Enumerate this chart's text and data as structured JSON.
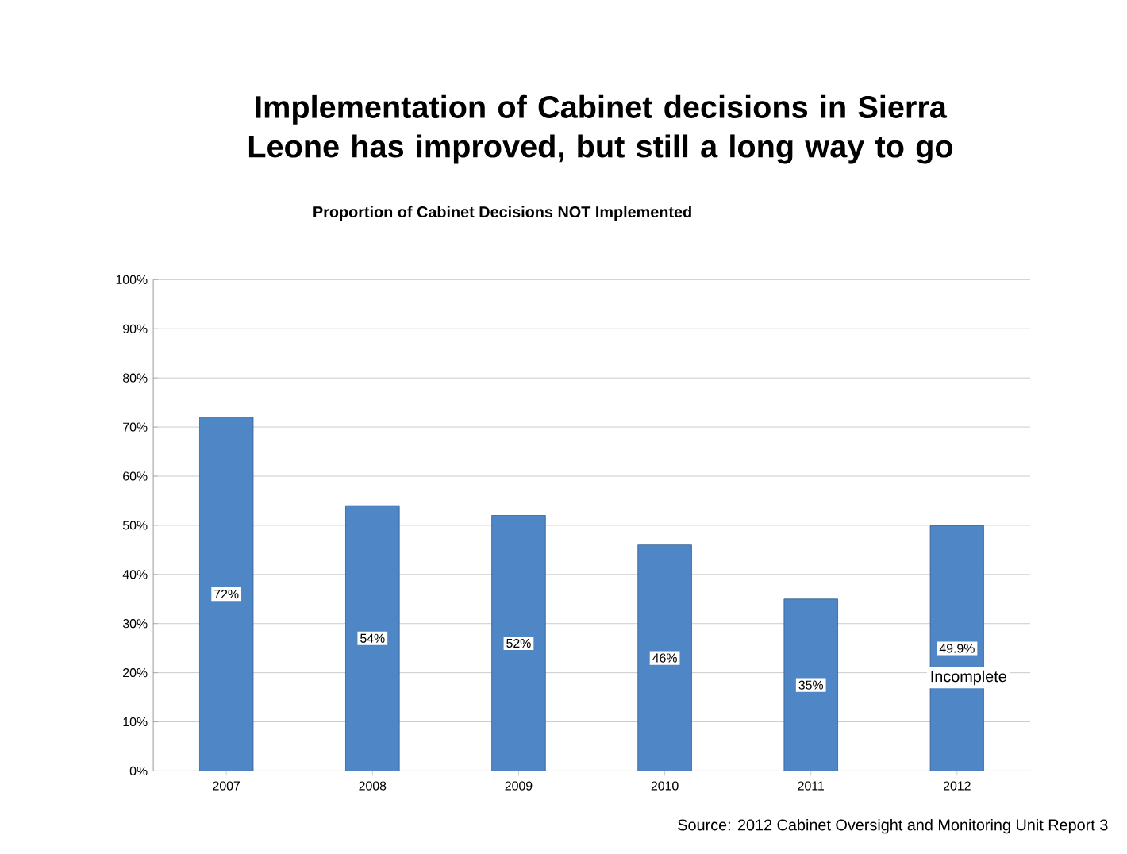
{
  "chart_data": {
    "type": "bar",
    "title": "Implementation of Cabinet decisions in Sierra Leone has improved, but still a long way to go",
    "subtitle": "Proportion of Cabinet Decisions NOT Implemented",
    "categories": [
      "2007",
      "2008",
      "2009",
      "2010",
      "2011",
      "2012"
    ],
    "values": [
      72,
      54,
      52,
      46,
      35,
      49.9
    ],
    "value_labels": [
      "72%",
      "54%",
      "52%",
      "46%",
      "35%",
      "49.9%"
    ],
    "color": "#4f86c6",
    "ylim": [
      0,
      100
    ],
    "yticks": [
      {
        "value": 0,
        "label": "0%"
      },
      {
        "value": 10,
        "label": "10%"
      },
      {
        "value": 20,
        "label": "20%"
      },
      {
        "value": 30,
        "label": "30%"
      },
      {
        "value": 40,
        "label": "40%"
      },
      {
        "value": 50,
        "label": "50%"
      },
      {
        "value": 60,
        "label": "60%"
      },
      {
        "value": 70,
        "label": "70%"
      },
      {
        "value": 80,
        "label": "80%"
      },
      {
        "value": 90,
        "label": "90%"
      },
      {
        "value": 100,
        "label": "100%"
      }
    ],
    "grid": "y",
    "annotations": [
      "Incomplete",
      "Source: 2012  Cabinet Oversight and Monitoring Unit Report 3"
    ]
  }
}
